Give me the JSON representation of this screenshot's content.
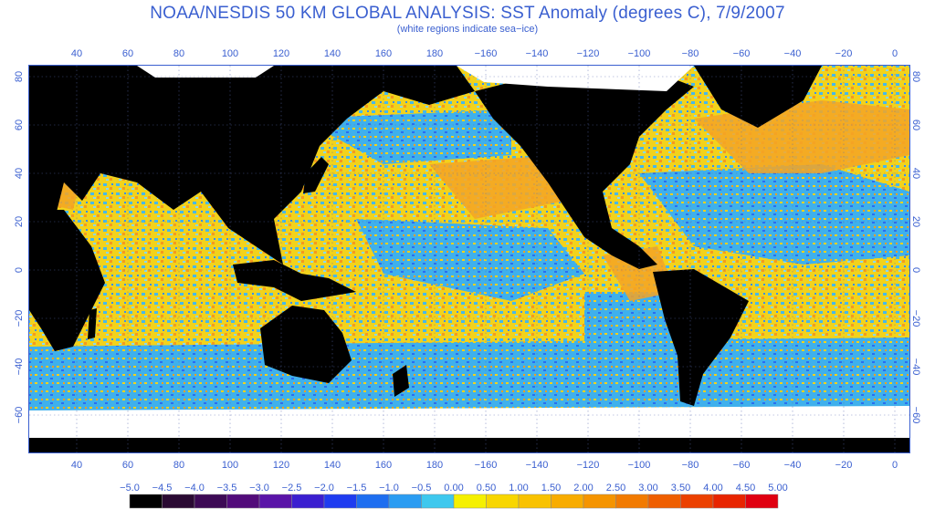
{
  "title": "NOAA/NESDIS 50 KM GLOBAL ANALYSIS: SST Anomaly (degrees C), 7/9/2007",
  "subtitle": "(white regions indicate sea−ice)",
  "lon_ticks": [
    "40",
    "60",
    "80",
    "100",
    "120",
    "140",
    "160",
    "180",
    "−160",
    "−140",
    "−120",
    "−100",
    "−80",
    "−60",
    "−40",
    "−20",
    "0"
  ],
  "lat_ticks": [
    "80",
    "60",
    "40",
    "20",
    "0",
    "−20",
    "−40",
    "−60"
  ],
  "colorbar": {
    "labels": [
      "−5.0",
      "−4.5",
      "−4.0",
      "−3.5",
      "−3.0",
      "−2.5",
      "−2.0",
      "−1.5",
      "−1.0",
      "−0.5",
      "0.00",
      "0.50",
      "1.00",
      "1.50",
      "2.00",
      "2.50",
      "3.00",
      "3.50",
      "4.00",
      "4.50",
      "5.00"
    ],
    "colors": [
      "#000000",
      "#2a0a33",
      "#3d0a55",
      "#520b7a",
      "#5a14a8",
      "#3b1fd0",
      "#1f3cf0",
      "#1e6ef0",
      "#2a9cf2",
      "#3ec8ee",
      "#f5f000",
      "#f8d600",
      "#f9c200",
      "#f8ac00",
      "#f59400",
      "#f27a00",
      "#ef5e00",
      "#ec4000",
      "#e82400",
      "#e00010"
    ]
  },
  "colors": {
    "land": "#000000",
    "ice": "#ffffff",
    "ocean_neutral": "#f0dc1e",
    "cool": "#3ab6ea",
    "warm": "#f59a1e",
    "frame": "#3a5fd0"
  }
}
